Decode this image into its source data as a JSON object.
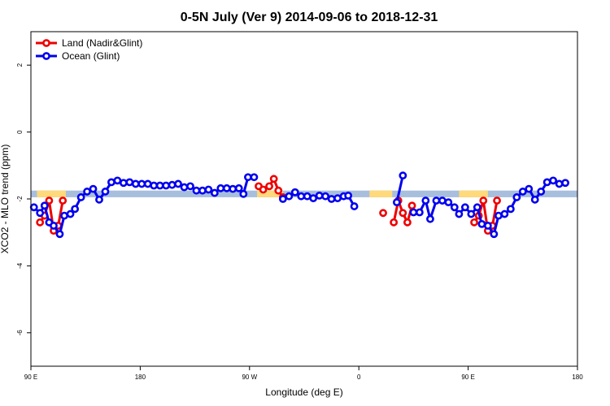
{
  "chart_data": {
    "type": "line",
    "title": "0-5N July (Ver 9)   2014-09-06 to 2018-12-31",
    "xlabel": "Longitude (deg E)",
    "ylabel": "XCO2 - MLO trend (ppm)",
    "xlim": [
      90,
      450
    ],
    "ylim": [
      -7,
      3
    ],
    "x_ticks": [
      {
        "value": 90,
        "label": "90 E"
      },
      {
        "value": 162,
        "label": "180"
      },
      {
        "value": 234,
        "label": "90 W"
      },
      {
        "value": 306,
        "label": "0"
      },
      {
        "value": 378,
        "label": "90 E"
      },
      {
        "value": 450,
        "label": "180"
      }
    ],
    "y_ticks": [
      {
        "value": -6,
        "label": "-6"
      },
      {
        "value": -4,
        "label": "-4"
      },
      {
        "value": -2,
        "label": "-2"
      },
      {
        "value": 0,
        "label": "0"
      },
      {
        "value": 2,
        "label": "2"
      }
    ],
    "band": {
      "y_low": -1.95,
      "y_high": -1.75,
      "color": "#a8bedd"
    },
    "highlight_color": "#ffd97a",
    "highlight_spans": [
      [
        94,
        113
      ],
      [
        239,
        256
      ],
      [
        313,
        328
      ],
      [
        372,
        391
      ]
    ],
    "legend": {
      "placement": "top-left"
    },
    "series": [
      {
        "name": "Land (Nadir&Glint)",
        "color": "#ee0000",
        "segments": [
          [
            [
              96,
              -2.7
            ],
            [
              99,
              -2.5
            ],
            [
              102,
              -2.05
            ],
            [
              105,
              -2.95
            ],
            [
              108,
              -2.8
            ],
            [
              111,
              -2.05
            ]
          ],
          [
            [
              240,
              -1.62
            ],
            [
              243,
              -1.72
            ],
            [
              247,
              -1.62
            ],
            [
              250,
              -1.4
            ],
            [
              253,
              -1.75
            ],
            [
              256,
              -1.95
            ]
          ],
          [
            [
              305.5,
              null
            ]
          ],
          [
            [
              305.6,
              null
            ]
          ],
          [
            [
              322,
              -2.42
            ]
          ],
          [
            [
              329,
              -2.7
            ],
            [
              332,
              -2.05
            ],
            [
              335,
              -2.42
            ],
            [
              338,
              -2.7
            ],
            [
              341,
              -2.2
            ]
          ],
          [
            [
              382,
              -2.7
            ],
            [
              385,
              -2.5
            ],
            [
              388,
              -2.05
            ],
            [
              391,
              -2.95
            ],
            [
              394,
              -2.8
            ],
            [
              397,
              -2.05
            ]
          ]
        ]
      },
      {
        "name": "Ocean (Glint)",
        "color": "#0000ee",
        "segments": [
          [
            [
              92,
              -2.25
            ],
            [
              96,
              -2.42
            ],
            [
              99,
              -2.2
            ],
            [
              102,
              -2.7
            ],
            [
              105,
              -2.8
            ],
            [
              109,
              -3.05
            ],
            [
              112,
              -2.5
            ],
            [
              116,
              -2.45
            ],
            [
              119,
              -2.3
            ],
            [
              123,
              -1.95
            ],
            [
              127,
              -1.78
            ],
            [
              131,
              -1.7
            ],
            [
              135,
              -2.02
            ],
            [
              139,
              -1.78
            ],
            [
              143,
              -1.5
            ],
            [
              147,
              -1.45
            ],
            [
              151,
              -1.52
            ],
            [
              155,
              -1.5
            ],
            [
              159,
              -1.55
            ],
            [
              163,
              -1.55
            ],
            [
              167,
              -1.55
            ],
            [
              171,
              -1.6
            ],
            [
              175,
              -1.6
            ],
            [
              179,
              -1.6
            ],
            [
              183,
              -1.58
            ],
            [
              187,
              -1.55
            ],
            [
              191,
              -1.65
            ],
            [
              195,
              -1.62
            ],
            [
              199,
              -1.75
            ],
            [
              203,
              -1.75
            ],
            [
              207,
              -1.72
            ],
            [
              211,
              -1.82
            ],
            [
              215,
              -1.68
            ],
            [
              219,
              -1.68
            ],
            [
              223,
              -1.7
            ],
            [
              227,
              -1.68
            ],
            [
              230,
              -1.85
            ],
            [
              233,
              -1.35
            ],
            [
              237,
              -1.35
            ]
          ],
          [
            [
              256,
              -2.0
            ],
            [
              260,
              -1.92
            ],
            [
              264,
              -1.8
            ],
            [
              268,
              -1.92
            ],
            [
              272,
              -1.92
            ],
            [
              276,
              -1.98
            ],
            [
              280,
              -1.9
            ],
            [
              284,
              -1.92
            ],
            [
              288,
              -2.0
            ],
            [
              292,
              -1.98
            ],
            [
              296,
              -1.92
            ],
            [
              299,
              -1.9
            ],
            [
              303,
              -2.22
            ]
          ],
          [
            [
              331,
              -2.1
            ],
            [
              335,
              -1.3
            ]
          ],
          [
            [
              342,
              -2.4
            ],
            [
              346,
              -2.4
            ],
            [
              350,
              -2.05
            ],
            [
              353,
              -2.6
            ],
            [
              357,
              -2.05
            ],
            [
              361,
              -2.05
            ],
            [
              365,
              -2.1
            ],
            [
              369,
              -2.25
            ],
            [
              372,
              -2.45
            ],
            [
              376,
              -2.25
            ],
            [
              380,
              -2.45
            ],
            [
              384,
              -2.25
            ],
            [
              387,
              -2.75
            ],
            [
              391,
              -2.8
            ],
            [
              395,
              -3.05
            ],
            [
              398,
              -2.5
            ],
            [
              402,
              -2.45
            ],
            [
              406,
              -2.3
            ],
            [
              410,
              -1.95
            ],
            [
              414,
              -1.78
            ],
            [
              418,
              -1.7
            ],
            [
              422,
              -2.02
            ],
            [
              426,
              -1.78
            ],
            [
              430,
              -1.5
            ],
            [
              434,
              -1.45
            ],
            [
              438,
              -1.55
            ],
            [
              442,
              -1.52
            ]
          ]
        ]
      }
    ]
  }
}
